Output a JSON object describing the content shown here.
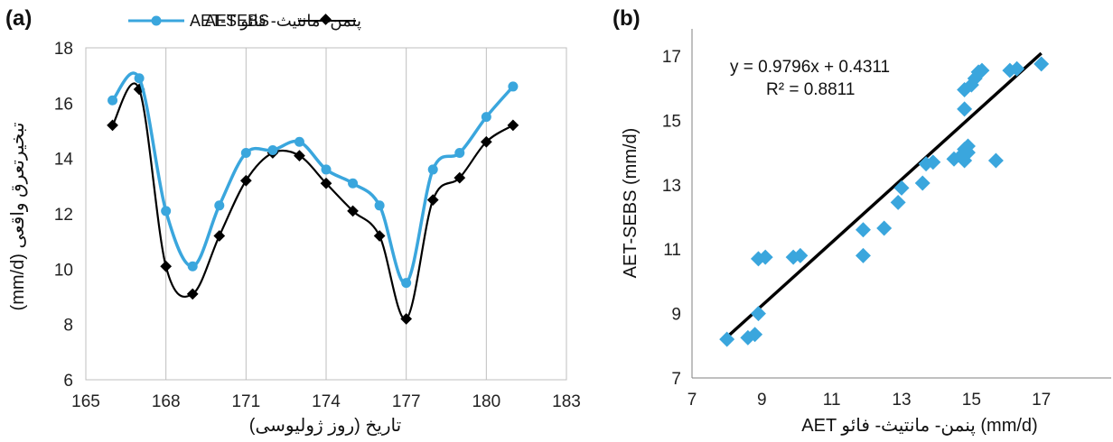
{
  "chart_data": [
    {
      "type": "line",
      "panel_label": "(a)",
      "xlabel": "تاریخ (روز ژولیوسی)",
      "ylabel": "تبخیرتعرق واقعی (mm/d)",
      "xlim": [
        165,
        183
      ],
      "ylim": [
        6,
        18
      ],
      "xticks": [
        165,
        168,
        171,
        174,
        177,
        180,
        183
      ],
      "yticks": [
        6,
        8,
        10,
        12,
        14,
        16,
        18
      ],
      "grid": "vertical",
      "legend_position": "top",
      "x": [
        166,
        167,
        168,
        169,
        170,
        171,
        172,
        173,
        174,
        175,
        176,
        177,
        178,
        179,
        180,
        181
      ],
      "series": [
        {
          "name": "AET-SEBS",
          "color": "#3aa6dd",
          "marker": "circle",
          "values": [
            16.1,
            16.9,
            12.1,
            10.1,
            12.3,
            14.2,
            14.3,
            14.6,
            13.6,
            13.1,
            12.3,
            9.5,
            13.6,
            14.2,
            15.5,
            16.6
          ]
        },
        {
          "name": "AET پنمن- مانتیث- فائو",
          "color": "#000000",
          "marker": "diamond",
          "values": [
            15.2,
            16.5,
            10.1,
            9.1,
            11.2,
            13.2,
            14.2,
            14.1,
            13.1,
            12.1,
            11.2,
            8.2,
            12.5,
            13.3,
            14.6,
            15.2
          ]
        }
      ]
    },
    {
      "type": "scatter",
      "panel_label": "(b)",
      "xlabel": "AET پنمن- مانتیث- فائو (mm/d)",
      "ylabel": "AET-SEBS (mm/d)",
      "xlim": [
        7,
        19
      ],
      "ylim": [
        7,
        17
      ],
      "xticks": [
        7,
        9,
        11,
        13,
        15,
        17
      ],
      "yticks": [
        7,
        9,
        11,
        13,
        15,
        17
      ],
      "grid": "none",
      "point_color": "#3aa6dd",
      "line_color": "#000000",
      "equation": "y = 0.9796x + 0.4311",
      "r_squared_text": "R² = 0.8811",
      "trendline": {
        "slope": 0.9796,
        "intercept": 0.4311,
        "x_range": [
          8.0,
          17.0
        ]
      },
      "points": [
        [
          8.0,
          8.2
        ],
        [
          8.6,
          8.25
        ],
        [
          8.8,
          8.35
        ],
        [
          8.9,
          9.0
        ],
        [
          8.9,
          10.7
        ],
        [
          9.1,
          10.75
        ],
        [
          9.9,
          10.75
        ],
        [
          10.1,
          10.8
        ],
        [
          11.9,
          10.8
        ],
        [
          11.9,
          11.6
        ],
        [
          12.5,
          11.65
        ],
        [
          12.9,
          12.45
        ],
        [
          13.0,
          12.9
        ],
        [
          13.6,
          13.05
        ],
        [
          13.7,
          13.65
        ],
        [
          13.9,
          13.7
        ],
        [
          14.5,
          13.8
        ],
        [
          14.7,
          13.9
        ],
        [
          14.8,
          13.75
        ],
        [
          14.9,
          14.0
        ],
        [
          14.8,
          14.1
        ],
        [
          14.9,
          14.2
        ],
        [
          14.8,
          15.35
        ],
        [
          14.8,
          15.95
        ],
        [
          15.0,
          16.1
        ],
        [
          15.1,
          16.3
        ],
        [
          15.2,
          16.5
        ],
        [
          15.3,
          16.55
        ],
        [
          15.7,
          13.75
        ],
        [
          16.1,
          16.55
        ],
        [
          16.3,
          16.6
        ],
        [
          17.0,
          16.75
        ]
      ]
    }
  ]
}
